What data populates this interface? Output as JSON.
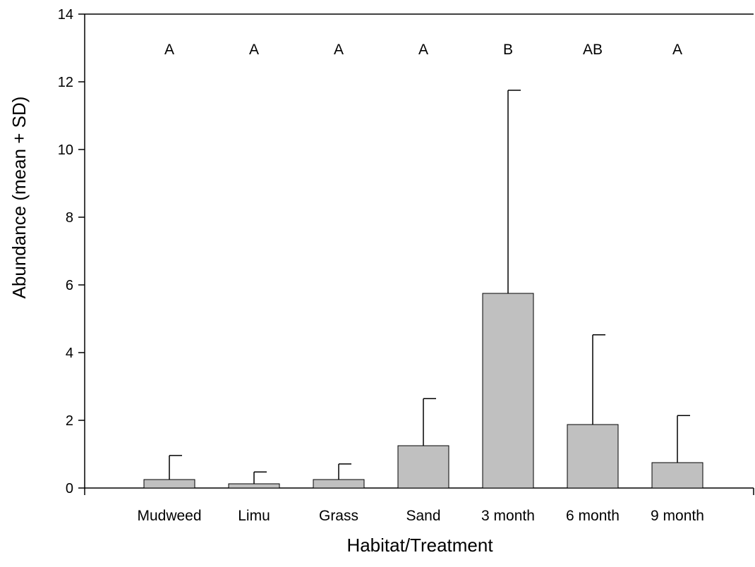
{
  "chart_data": {
    "type": "bar",
    "categories": [
      "Mudweed",
      "Limu",
      "Grass",
      "Sand",
      "3 month",
      "6 month",
      "9 month"
    ],
    "values": [
      0.25,
      0.125,
      0.25,
      1.25,
      5.75,
      1.875,
      0.75
    ],
    "error_plus_sd": [
      0.71,
      0.35,
      0.46,
      1.39,
      6.0,
      2.65,
      1.39
    ],
    "significance_letters": [
      "A",
      "A",
      "A",
      "A",
      "B",
      "AB",
      "A"
    ],
    "title": "",
    "xlabel": "Habitat/Treatment",
    "ylabel": "Abundance (mean  + SD)",
    "ylim": [
      0,
      14
    ],
    "yticks": [
      0,
      2,
      4,
      6,
      8,
      10,
      12,
      14
    ],
    "grid": false,
    "bar_color": "#c0c0c0"
  }
}
